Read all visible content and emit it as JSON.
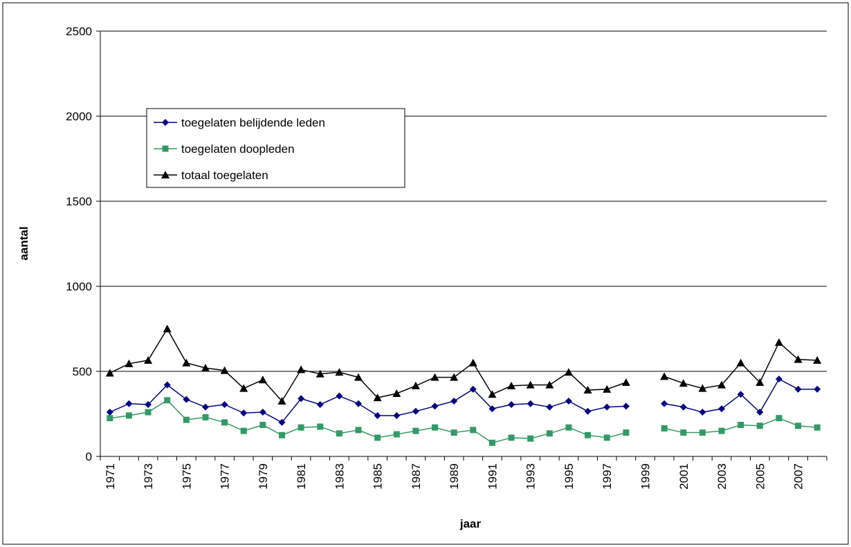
{
  "chart_data": {
    "type": "line",
    "x_label": "jaar",
    "y_label": "aantal",
    "categories": [
      "1971",
      null,
      "1973",
      null,
      "1975",
      null,
      "1977",
      null,
      "1979",
      null,
      "1981",
      null,
      "1983",
      null,
      "1985",
      null,
      "1987",
      null,
      "1989",
      null,
      "1991",
      null,
      "1993",
      null,
      "1995",
      null,
      "1997",
      null,
      "1999",
      null,
      "2001",
      null,
      "2003",
      null,
      "2005",
      null,
      "2007",
      null
    ],
    "series": [
      {
        "name": "toegelaten belijdende leden",
        "color": "#000080",
        "marker": "diamond",
        "values": [
          260,
          310,
          305,
          420,
          335,
          290,
          305,
          255,
          260,
          200,
          340,
          305,
          355,
          310,
          240,
          240,
          265,
          295,
          325,
          395,
          280,
          305,
          310,
          290,
          325,
          265,
          290,
          295,
          null,
          310,
          290,
          260,
          280,
          365,
          260,
          455,
          395,
          395
        ]
      },
      {
        "name": "toegelaten doopleden",
        "color": "#339966",
        "marker": "square",
        "values": [
          225,
          240,
          260,
          330,
          215,
          230,
          200,
          150,
          185,
          125,
          170,
          175,
          135,
          155,
          110,
          130,
          150,
          170,
          140,
          155,
          80,
          110,
          105,
          135,
          170,
          125,
          110,
          140,
          null,
          165,
          140,
          140,
          150,
          185,
          180,
          225,
          180,
          170
        ]
      },
      {
        "name": "totaal toegelaten",
        "color": "#000000",
        "marker": "triangle",
        "values": [
          490,
          545,
          565,
          750,
          550,
          520,
          505,
          400,
          450,
          325,
          510,
          485,
          495,
          465,
          345,
          370,
          415,
          465,
          465,
          550,
          365,
          415,
          420,
          420,
          495,
          390,
          395,
          435,
          null,
          470,
          430,
          400,
          420,
          550,
          435,
          670,
          570,
          565
        ]
      }
    ],
    "ylim": [
      0,
      2500
    ],
    "yticks": [
      0,
      500,
      1000,
      1500,
      2000,
      2500
    ],
    "grid": true,
    "legend": "upper left"
  }
}
